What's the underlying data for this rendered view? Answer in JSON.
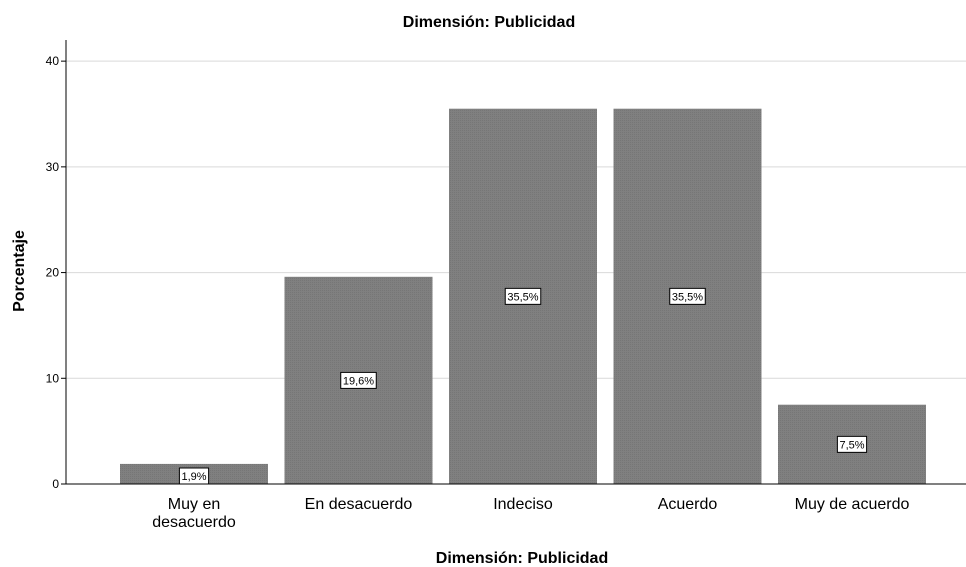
{
  "chart_data": {
    "type": "bar",
    "title": "Dimensión: Publicidad",
    "xlabel": "Dimensión: Publicidad",
    "ylabel": "Porcentaje",
    "categories": [
      [
        "Muy en",
        "desacuerdo"
      ],
      [
        "En desacuerdo"
      ],
      [
        "Indeciso"
      ],
      [
        "Acuerdo"
      ],
      [
        "Muy de acuerdo"
      ]
    ],
    "values": [
      1.9,
      19.6,
      35.5,
      35.5,
      7.5
    ],
    "data_labels": [
      "1,9%",
      "19,6%",
      "35,5%",
      "35,5%",
      "7,5%"
    ],
    "yticks": [
      0,
      10,
      20,
      30,
      40
    ],
    "ylim": [
      0,
      42
    ],
    "grid": true,
    "colors": {
      "bar": "#7f7f7f",
      "grid": "#d9d9d9",
      "axis": "#000000"
    }
  }
}
